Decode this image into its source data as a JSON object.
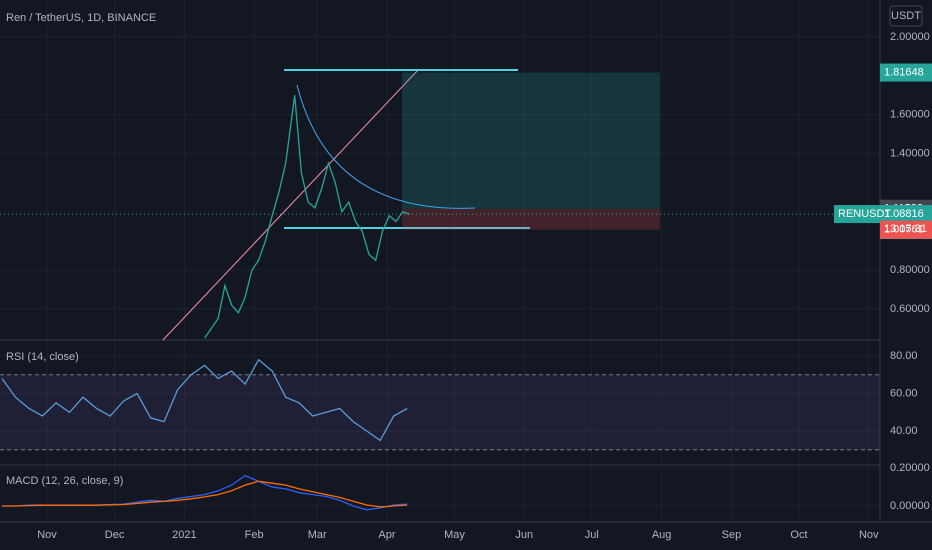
{
  "chart_data": [
    {
      "type": "line",
      "title": "Ren / TetherUS, 1D, BINANCE",
      "currency": "USDT",
      "symbol": "RENUSDT",
      "countdown": "13:15:31",
      "color": "#26a69a",
      "x": [
        90,
        93,
        96,
        99,
        102,
        105,
        108,
        111,
        114,
        117,
        120,
        123,
        126,
        130,
        133,
        136,
        139,
        142,
        145,
        148,
        151,
        154,
        157,
        160,
        163,
        166,
        169,
        172,
        175,
        178,
        181
      ],
      "series": [
        {
          "values": [
            0.45,
            0.5,
            0.55,
            0.72,
            0.62,
            0.58,
            0.66,
            0.8,
            0.85,
            0.95,
            1.08,
            1.2,
            1.35,
            1.7,
            1.3,
            1.15,
            1.12,
            1.22,
            1.35,
            1.25,
            1.1,
            1.15,
            1.05,
            1.0,
            0.88,
            0.85,
            1.0,
            1.08,
            1.05,
            1.1,
            1.08816
          ]
        }
      ],
      "xlim": [
        0,
        390
      ],
      "xticks": [
        {
          "value": 20,
          "label": "Nov"
        },
        {
          "value": 50,
          "label": "Dec"
        },
        {
          "value": 81,
          "label": "2021"
        },
        {
          "value": 112,
          "label": "Feb"
        },
        {
          "value": 140,
          "label": "Mar"
        },
        {
          "value": 171,
          "label": "Apr"
        },
        {
          "value": 201,
          "label": "May"
        },
        {
          "value": 232,
          "label": "Jun"
        },
        {
          "value": 262,
          "label": "Jul"
        },
        {
          "value": 293,
          "label": "Aug"
        },
        {
          "value": 324,
          "label": "Sep"
        },
        {
          "value": 354,
          "label": "Oct"
        },
        {
          "value": 385,
          "label": "Nov"
        }
      ],
      "ylim": [
        0.44,
        2.19
      ],
      "yticks": [
        {
          "value": 2,
          "label": "2.00000"
        },
        {
          "value": 1.6,
          "label": "1.60000"
        },
        {
          "value": 1.4,
          "label": "1.40000"
        },
        {
          "value": 0.8,
          "label": "0.80000"
        },
        {
          "value": 0.6,
          "label": "0.60000"
        }
      ],
      "levels": {
        "target": 1.81648,
        "entry": 1.11583,
        "last": 1.08816,
        "stop": 1.00761
      }
    },
    {
      "type": "line",
      "title": "RSI (14, close)",
      "color": "#5b9bd5",
      "x": [
        0,
        6,
        12,
        18,
        24,
        30,
        36,
        42,
        48,
        54,
        60,
        66,
        72,
        78,
        84,
        90,
        96,
        102,
        108,
        114,
        120,
        126,
        132,
        138,
        144,
        150,
        156,
        162,
        168,
        174,
        180
      ],
      "series": [
        {
          "values": [
            68,
            58,
            52,
            48,
            55,
            50,
            58,
            52,
            48,
            56,
            60,
            47,
            45,
            62,
            70,
            75,
            68,
            72,
            65,
            78,
            72,
            58,
            55,
            48,
            50,
            52,
            45,
            40,
            35,
            48,
            52
          ]
        }
      ],
      "band": [
        30,
        70
      ],
      "ylim": [
        21.9,
        88.5
      ],
      "yticks": [
        {
          "value": 80,
          "label": "80.00"
        },
        {
          "value": 60,
          "label": "60.00"
        },
        {
          "value": 40,
          "label": "40.00"
        }
      ]
    },
    {
      "type": "line",
      "title": "MACD (12, 26, close, 9)",
      "x": [
        0,
        6,
        12,
        18,
        24,
        30,
        36,
        42,
        48,
        54,
        60,
        66,
        72,
        78,
        84,
        90,
        96,
        102,
        108,
        114,
        120,
        126,
        132,
        138,
        144,
        150,
        156,
        162,
        168,
        174,
        180
      ],
      "series": [
        {
          "color": "#2962ff",
          "values": [
            0,
            0,
            0.005,
            0.005,
            0.003,
            0.004,
            0.003,
            0.005,
            0.008,
            0.01,
            0.02,
            0.03,
            0.025,
            0.04,
            0.05,
            0.06,
            0.08,
            0.11,
            0.16,
            0.13,
            0.1,
            0.09,
            0.07,
            0.06,
            0.05,
            0.03,
            0,
            -0.02,
            -0.01,
            0.005,
            0.01
          ]
        },
        {
          "color": "#ff6d00",
          "values": [
            0,
            0,
            0.002,
            0.004,
            0.004,
            0.004,
            0.004,
            0.004,
            0.006,
            0.008,
            0.013,
            0.02,
            0.024,
            0.03,
            0.038,
            0.048,
            0.06,
            0.08,
            0.11,
            0.13,
            0.12,
            0.11,
            0.09,
            0.075,
            0.06,
            0.045,
            0.025,
            0.005,
            -0.005,
            0,
            0.005
          ]
        }
      ],
      "ylim": [
        -0.0737,
        0.2158
      ],
      "yticks": [
        {
          "value": 0.2,
          "label": "0.20000"
        },
        {
          "value": 0,
          "label": "0.00000"
        }
      ]
    }
  ]
}
